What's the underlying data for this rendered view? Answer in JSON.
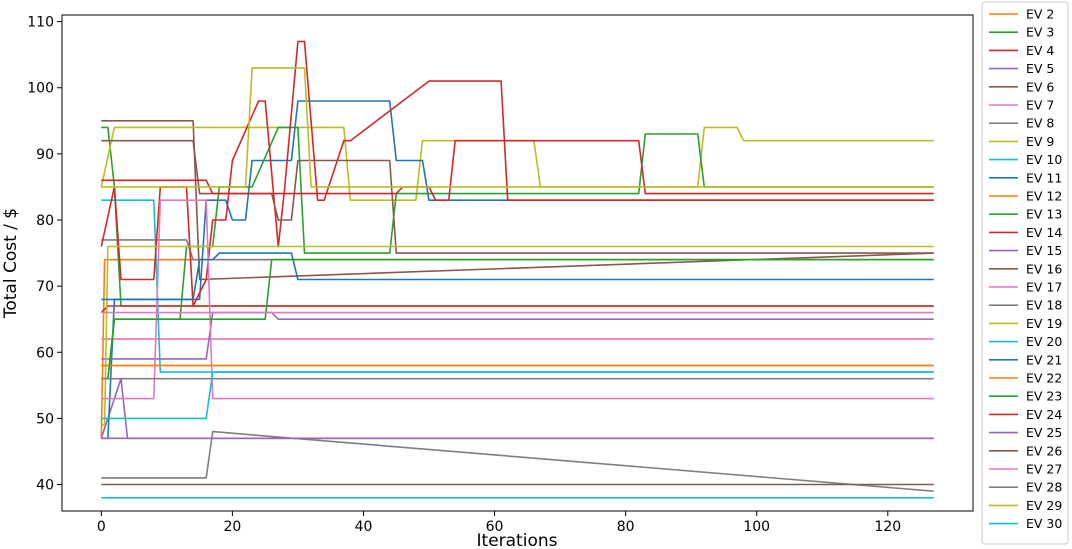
{
  "chart_data": {
    "type": "line",
    "title": "",
    "xlabel": "Iterations",
    "ylabel": "Total Cost / $",
    "xlim": [
      -6,
      133
    ],
    "ylim": [
      36,
      111
    ],
    "xticks": [
      "0",
      "20",
      "40",
      "60",
      "80",
      "100",
      "120"
    ],
    "yticks": [
      "40",
      "50",
      "60",
      "70",
      "80",
      "90",
      "100",
      "110"
    ],
    "grid": false,
    "legend_position": "right-outside",
    "series": [
      {
        "name": "EV 2",
        "color": "#ff7f0e",
        "x": [
          0,
          0.5,
          1,
          127
        ],
        "y": [
          47,
          74,
          74,
          74
        ]
      },
      {
        "name": "EV 3",
        "color": "#2ca02c",
        "x": [
          0,
          1,
          2,
          3,
          127
        ],
        "y": [
          94,
          94,
          85,
          67,
          67
        ]
      },
      {
        "name": "EV 4",
        "color": "#d62728",
        "x": [
          0,
          1,
          2,
          3,
          14,
          15,
          127
        ],
        "y": [
          66,
          67,
          67,
          67,
          67,
          67,
          67
        ]
      },
      {
        "name": "EV 5",
        "color": "#9467bd",
        "x": [
          0,
          3,
          4,
          127
        ],
        "y": [
          47,
          56,
          47,
          47
        ]
      },
      {
        "name": "EV 6",
        "color": "#8c564b",
        "x": [
          0,
          14,
          15,
          127
        ],
        "y": [
          95,
          95,
          71,
          75
        ]
      },
      {
        "name": "EV 7",
        "color": "#e377c2",
        "x": [
          0,
          127
        ],
        "y": [
          62,
          62
        ]
      },
      {
        "name": "EV 8",
        "color": "#7f7f7f",
        "x": [
          0,
          13,
          14,
          127
        ],
        "y": [
          77,
          77,
          74,
          74
        ]
      },
      {
        "name": "EV 9",
        "color": "#bcbd22",
        "x": [
          0,
          2,
          21,
          22,
          24,
          29,
          30,
          37,
          38,
          44,
          45,
          48,
          49,
          66,
          67,
          91,
          92,
          97,
          98,
          127
        ],
        "y": [
          85,
          94,
          94,
          94,
          94,
          94,
          94,
          94,
          83,
          83,
          83,
          83,
          92,
          92,
          85,
          85,
          94,
          94,
          92,
          92
        ]
      },
      {
        "name": "EV 10",
        "color": "#17becf",
        "x": [
          0,
          8,
          9,
          127
        ],
        "y": [
          83,
          83,
          57,
          57
        ]
      },
      {
        "name": "EV 11",
        "color": "#1f77b4",
        "x": [
          0,
          1,
          2,
          15,
          16,
          19,
          20,
          22,
          23,
          26,
          27,
          29,
          30,
          44,
          45,
          49,
          50,
          127
        ],
        "y": [
          47,
          47,
          68,
          68,
          83,
          83,
          80,
          80,
          89,
          89,
          89,
          89,
          98,
          98,
          89,
          89,
          83,
          83
        ]
      },
      {
        "name": "EV 12",
        "color": "#ff7f0e",
        "x": [
          0,
          127
        ],
        "y": [
          58,
          58
        ]
      },
      {
        "name": "EV 13",
        "color": "#2ca02c",
        "x": [
          0,
          1,
          2,
          12,
          13,
          17,
          18,
          22,
          23,
          27,
          28,
          30,
          31,
          44,
          45,
          82,
          83,
          91,
          92,
          127
        ],
        "y": [
          56,
          56,
          65,
          65,
          76,
          76,
          85,
          85,
          85,
          94,
          94,
          94,
          75,
          75,
          84,
          84,
          93,
          93,
          85,
          85
        ]
      },
      {
        "name": "EV 14",
        "color": "#d62728",
        "x": [
          0,
          2,
          3,
          8,
          9,
          13,
          14,
          16,
          17,
          19,
          20,
          24,
          25,
          27,
          28,
          30,
          31,
          33,
          34,
          37,
          38,
          50,
          51,
          61,
          62,
          127
        ],
        "y": [
          76,
          85,
          71,
          71,
          85,
          85,
          67,
          71,
          80,
          80,
          89,
          98,
          98,
          76,
          85,
          107,
          107,
          83,
          83,
          92,
          92,
          101,
          101,
          101,
          83,
          83
        ]
      },
      {
        "name": "EV 15",
        "color": "#9467bd",
        "x": [
          0,
          16,
          17,
          26,
          27,
          127
        ],
        "y": [
          59,
          59,
          66,
          66,
          65,
          65
        ]
      },
      {
        "name": "EV 16",
        "color": "#8c564b",
        "x": [
          0,
          14,
          15,
          26,
          27,
          29,
          30,
          44,
          45,
          127
        ],
        "y": [
          92,
          92,
          84,
          84,
          80,
          80,
          89,
          89,
          75,
          75
        ]
      },
      {
        "name": "EV 17",
        "color": "#e377c2",
        "x": [
          0,
          8,
          9,
          11,
          12,
          16,
          17,
          127
        ],
        "y": [
          53,
          53,
          83,
          83,
          83,
          83,
          53,
          53
        ]
      },
      {
        "name": "EV 18",
        "color": "#7f7f7f",
        "x": [
          0,
          16,
          17,
          127
        ],
        "y": [
          41,
          41,
          48,
          39
        ]
      },
      {
        "name": "EV 19",
        "color": "#bcbd22",
        "x": [
          0,
          0.5,
          1,
          127
        ],
        "y": [
          49,
          49,
          76,
          76
        ]
      },
      {
        "name": "EV 20",
        "color": "#17becf",
        "x": [
          0,
          127
        ],
        "y": [
          38,
          38
        ]
      },
      {
        "name": "EV 21",
        "color": "#1f77b4",
        "x": [
          0,
          14,
          15,
          17,
          18,
          29,
          30,
          127
        ],
        "y": [
          68,
          68,
          74,
          74,
          75,
          75,
          71,
          71
        ]
      },
      {
        "name": "EV 22",
        "color": "#ff7f0e",
        "x": [
          0,
          127
        ],
        "y": [
          58,
          58
        ]
      },
      {
        "name": "EV 23",
        "color": "#2ca02c",
        "x": [
          0,
          1,
          2,
          25,
          26,
          127
        ],
        "y": [
          56,
          56,
          65,
          65,
          74,
          74
        ]
      },
      {
        "name": "EV 24",
        "color": "#d62728",
        "x": [
          0,
          16,
          17,
          45,
          46,
          50,
          51,
          53,
          54,
          62,
          63,
          82,
          83,
          127
        ],
        "y": [
          86,
          86,
          84,
          84,
          85,
          85,
          83,
          83,
          92,
          92,
          92,
          92,
          84,
          84
        ]
      },
      {
        "name": "EV 25",
        "color": "#9467bd",
        "x": [
          0,
          127
        ],
        "y": [
          47,
          47
        ]
      },
      {
        "name": "EV 26",
        "color": "#8c564b",
        "x": [
          0,
          127
        ],
        "y": [
          40,
          40
        ]
      },
      {
        "name": "EV 27",
        "color": "#e377c2",
        "x": [
          0,
          127
        ],
        "y": [
          66,
          66
        ]
      },
      {
        "name": "EV 28",
        "color": "#7f7f7f",
        "x": [
          0,
          127
        ],
        "y": [
          56,
          56
        ]
      },
      {
        "name": "EV 29",
        "color": "#bcbd22",
        "x": [
          0,
          22,
          23,
          26,
          27,
          31,
          32,
          127
        ],
        "y": [
          85,
          85,
          103,
          103,
          103,
          103,
          85,
          85
        ]
      },
      {
        "name": "EV 30",
        "color": "#17becf",
        "x": [
          0,
          16,
          17,
          127
        ],
        "y": [
          50,
          50,
          57,
          57
        ]
      }
    ]
  }
}
